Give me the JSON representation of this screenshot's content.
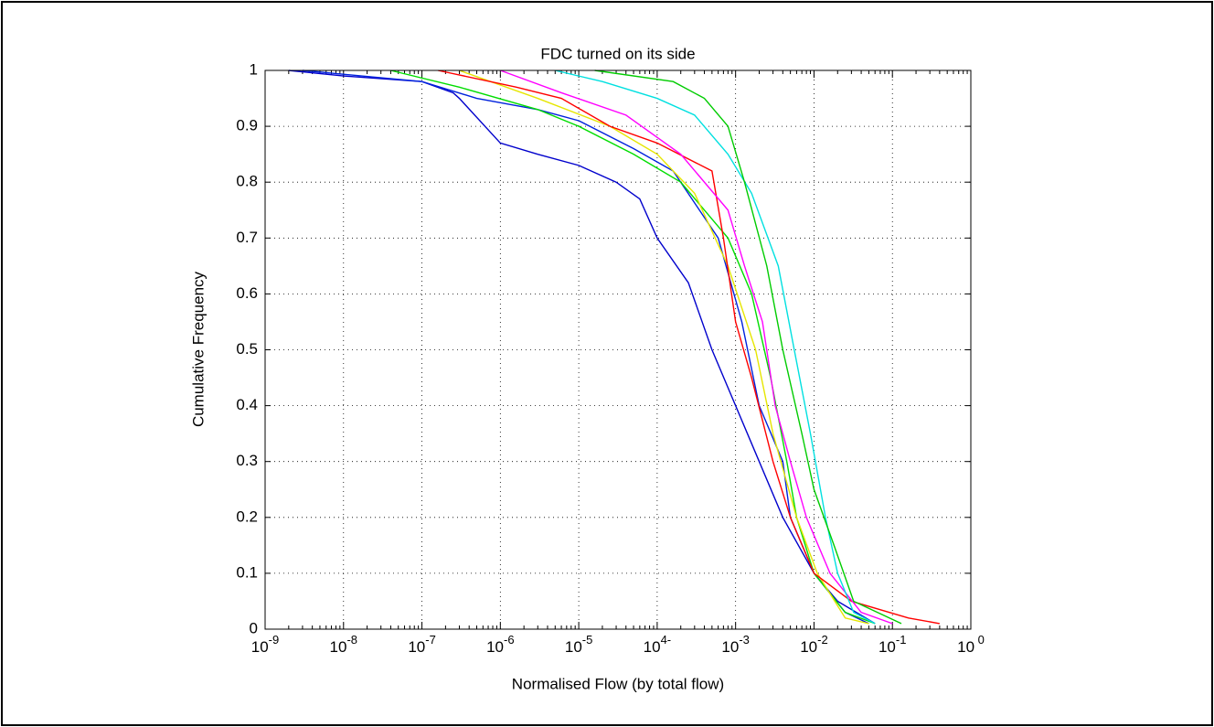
{
  "chart_data": {
    "type": "line",
    "title": "FDC turned on its side",
    "xlabel": "Normalised Flow (by total flow)",
    "ylabel": "Cumulative Frequency",
    "xscale": "log",
    "grid": true,
    "xlim": [
      1e-09,
      1
    ],
    "ylim": [
      0,
      1
    ],
    "xticks": [
      {
        "value": 1e-09,
        "label": "10-9"
      },
      {
        "value": 1e-08,
        "label": "10-8"
      },
      {
        "value": 1e-07,
        "label": "10-7"
      },
      {
        "value": 1e-06,
        "label": "10-6"
      },
      {
        "value": 1e-05,
        "label": "10-5"
      },
      {
        "value": 0.0001,
        "label": "104-"
      },
      {
        "value": 0.001,
        "label": "10-3"
      },
      {
        "value": 0.01,
        "label": "10-2"
      },
      {
        "value": 0.1,
        "label": "10-1"
      },
      {
        "value": 1,
        "label": "10 0"
      }
    ],
    "yticks": [
      0,
      0.1,
      0.2,
      0.3,
      0.4,
      0.5,
      0.6,
      0.7,
      0.8,
      0.9,
      1
    ],
    "series": [
      {
        "color": "#0000cc",
        "x": [
          2e-09,
          1e-08,
          1e-07,
          2.5e-07,
          3e-07,
          1e-06,
          3e-06,
          1e-05,
          3e-05,
          6e-05,
          0.0001,
          0.00025,
          0.0005,
          0.001,
          0.002,
          0.004,
          0.01,
          0.02,
          0.06
        ],
        "values": [
          1,
          0.99,
          0.98,
          0.96,
          0.95,
          0.87,
          0.85,
          0.83,
          0.8,
          0.77,
          0.7,
          0.62,
          0.5,
          0.4,
          0.3,
          0.2,
          0.1,
          0.05,
          0.01
        ]
      },
      {
        "color": "#0022dd",
        "x": [
          3e-09,
          1e-07,
          5e-07,
          3e-06,
          1e-05,
          5e-05,
          0.00016,
          0.0006,
          0.0012,
          0.002,
          0.004,
          0.005,
          0.01,
          0.025,
          0.05
        ],
        "values": [
          1,
          0.98,
          0.95,
          0.93,
          0.91,
          0.86,
          0.82,
          0.7,
          0.55,
          0.4,
          0.3,
          0.2,
          0.1,
          0.03,
          0.01
        ]
      },
      {
        "color": "#00dd00",
        "x": [
          4e-08,
          3e-07,
          3e-06,
          1e-05,
          5e-05,
          0.0002,
          0.0008,
          0.0016,
          0.0028,
          0.0045,
          0.006,
          0.01,
          0.025,
          0.06
        ],
        "values": [
          1,
          0.97,
          0.93,
          0.9,
          0.85,
          0.8,
          0.7,
          0.6,
          0.45,
          0.3,
          0.2,
          0.1,
          0.03,
          0.01
        ]
      },
      {
        "color": "#e6e600",
        "x": [
          3e-07,
          3e-06,
          2.5e-05,
          0.0001,
          0.0003,
          0.0008,
          0.0018,
          0.003,
          0.006,
          0.011,
          0.025,
          0.05
        ],
        "values": [
          1,
          0.95,
          0.9,
          0.85,
          0.78,
          0.65,
          0.5,
          0.35,
          0.2,
          0.1,
          0.02,
          0.01
        ]
      },
      {
        "color": "#ff0000",
        "x": [
          1.6e-07,
          1.6e-06,
          6e-06,
          2.5e-05,
          0.0001,
          0.0005,
          0.0007,
          0.001,
          0.0016,
          0.003,
          0.005,
          0.01,
          0.03,
          0.16,
          0.4
        ],
        "values": [
          1,
          0.97,
          0.95,
          0.9,
          0.87,
          0.82,
          0.7,
          0.55,
          0.45,
          0.3,
          0.2,
          0.1,
          0.05,
          0.02,
          0.01
        ]
      },
      {
        "color": "#ff00ff",
        "x": [
          1e-06,
          6e-06,
          4e-05,
          0.0002,
          0.0008,
          0.0013,
          0.0022,
          0.0032,
          0.005,
          0.008,
          0.016,
          0.04,
          0.1
        ],
        "values": [
          1,
          0.96,
          0.92,
          0.85,
          0.75,
          0.65,
          0.55,
          0.4,
          0.3,
          0.2,
          0.1,
          0.03,
          0.01
        ]
      },
      {
        "color": "#00e0e0",
        "x": [
          5e-06,
          2e-05,
          0.0001,
          0.0003,
          0.0008,
          0.0016,
          0.0035,
          0.0056,
          0.009,
          0.014,
          0.02,
          0.032,
          0.06
        ],
        "values": [
          1,
          0.98,
          0.95,
          0.92,
          0.85,
          0.78,
          0.65,
          0.5,
          0.35,
          0.2,
          0.1,
          0.03,
          0.01
        ]
      },
      {
        "color": "#00cc00",
        "x": [
          1.6e-05,
          0.00016,
          0.0004,
          0.0008,
          0.0013,
          0.0025,
          0.004,
          0.007,
          0.01,
          0.018,
          0.032,
          0.13
        ],
        "values": [
          1,
          0.98,
          0.95,
          0.9,
          0.8,
          0.65,
          0.5,
          0.35,
          0.25,
          0.15,
          0.05,
          0.01
        ]
      }
    ]
  }
}
